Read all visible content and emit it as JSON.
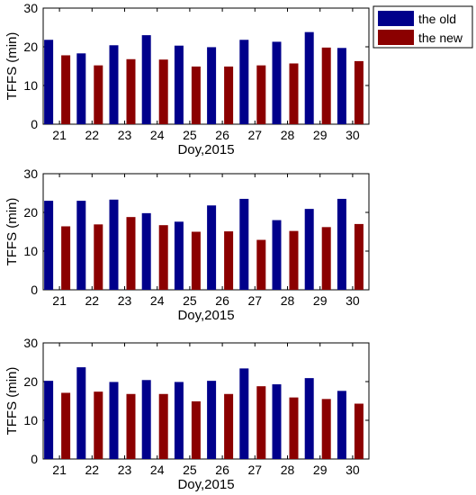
{
  "legend": [
    {
      "name": "the old",
      "color": "#00008B"
    },
    {
      "name": "the new",
      "color": "#8B0000"
    }
  ],
  "chart_data": [
    {
      "type": "bar",
      "xlabel": "Doy,2015",
      "ylabel": "TFFS (min)",
      "ylim": [
        0,
        30
      ],
      "yticks": [
        0,
        10,
        20,
        30
      ],
      "categories": [
        "21",
        "22",
        "23",
        "24",
        "25",
        "26",
        "27",
        "28",
        "29",
        "30"
      ],
      "series": [
        {
          "name": "the old",
          "color": "#00008B",
          "values": [
            21.8,
            18.3,
            20.4,
            23.0,
            20.3,
            19.9,
            21.8,
            21.3,
            23.8,
            19.7
          ]
        },
        {
          "name": "the new",
          "color": "#8B0000",
          "values": [
            17.8,
            15.2,
            16.8,
            16.7,
            14.9,
            14.9,
            15.2,
            15.7,
            19.8,
            16.3
          ]
        }
      ],
      "legend_position": "outside top-right"
    },
    {
      "type": "bar",
      "xlabel": "Doy,2015",
      "ylabel": "TFFS (min)",
      "ylim": [
        0,
        30
      ],
      "yticks": [
        0,
        10,
        20,
        30
      ],
      "categories": [
        "21",
        "22",
        "23",
        "24",
        "25",
        "26",
        "27",
        "28",
        "29",
        "30"
      ],
      "series": [
        {
          "name": "the old",
          "color": "#00008B",
          "values": [
            23.0,
            23.0,
            23.3,
            19.8,
            17.6,
            21.8,
            23.5,
            18.0,
            20.9,
            23.5
          ]
        },
        {
          "name": "the new",
          "color": "#8B0000",
          "values": [
            16.4,
            16.9,
            18.8,
            16.7,
            15.0,
            15.1,
            12.9,
            15.2,
            16.2,
            17.0
          ]
        }
      ]
    },
    {
      "type": "bar",
      "xlabel": "Doy,2015",
      "ylabel": "TFFS (min)",
      "ylim": [
        0,
        30
      ],
      "yticks": [
        0,
        10,
        20,
        30
      ],
      "categories": [
        "21",
        "22",
        "23",
        "24",
        "25",
        "26",
        "27",
        "28",
        "29",
        "30"
      ],
      "series": [
        {
          "name": "the old",
          "color": "#00008B",
          "values": [
            20.2,
            23.7,
            19.9,
            20.4,
            19.9,
            20.2,
            23.4,
            19.3,
            20.9,
            17.6
          ]
        },
        {
          "name": "the new",
          "color": "#8B0000",
          "values": [
            17.1,
            17.4,
            16.8,
            16.8,
            14.9,
            16.8,
            18.8,
            15.9,
            15.5,
            14.3
          ]
        }
      ]
    }
  ]
}
